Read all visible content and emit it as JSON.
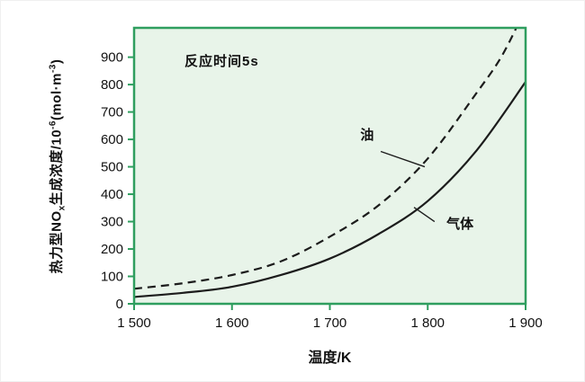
{
  "figure": {
    "bg": "#ffffff",
    "plot_bg": "#e8f4e9",
    "frame_color": "#2f9e5f",
    "curve_color": "#1c1c1c",
    "text_color": "#111111"
  },
  "chart_data": {
    "type": "line",
    "title": "",
    "annotation": "反应时间5s",
    "xlabel": "温度/K",
    "ylabel": "热力型NOx生成浓度/10-6(mol·m-3)",
    "ylabel_parts": {
      "p1": "热力型NO",
      "p2": "x",
      "p3": "生成浓度/10",
      "p4": "-6",
      "p5": "(mol·m",
      "p6": "-3",
      "p7": ")"
    },
    "xlim": [
      1500,
      1900
    ],
    "ylim": [
      0,
      1007
    ],
    "x_ticks": [
      1500,
      1600,
      1700,
      1800,
      1900
    ],
    "x_tick_labels": [
      "1 500",
      "1 600",
      "1 700",
      "1 800",
      "1 900"
    ],
    "y_ticks": [
      0,
      100,
      200,
      300,
      400,
      500,
      600,
      700,
      800,
      900
    ],
    "y_tick_labels": [
      "0",
      "100",
      "200",
      "300",
      "400",
      "500",
      "600",
      "700",
      "800",
      "900"
    ],
    "grid": false,
    "legend_position": "inline-annotations",
    "series": [
      {
        "name": "油",
        "style": "dashed",
        "x": [
          1500,
          1550,
          1600,
          1650,
          1700,
          1750,
          1800,
          1850,
          1875,
          1895
        ],
        "y": [
          55,
          75,
          105,
          155,
          245,
          360,
          530,
          770,
          900,
          1040
        ],
        "label_pos": [
          1738,
          600
        ],
        "leader": [
          [
            1752,
            556
          ],
          [
            1797,
            500
          ]
        ]
      },
      {
        "name": "气体",
        "style": "solid",
        "x": [
          1500,
          1550,
          1600,
          1650,
          1700,
          1750,
          1800,
          1850,
          1900
        ],
        "y": [
          25,
          40,
          62,
          105,
          165,
          255,
          375,
          560,
          810
        ],
        "label_pos": [
          1833,
          275
        ],
        "leader": [
          [
            1786,
            352
          ],
          [
            1807,
            300
          ]
        ]
      }
    ]
  }
}
